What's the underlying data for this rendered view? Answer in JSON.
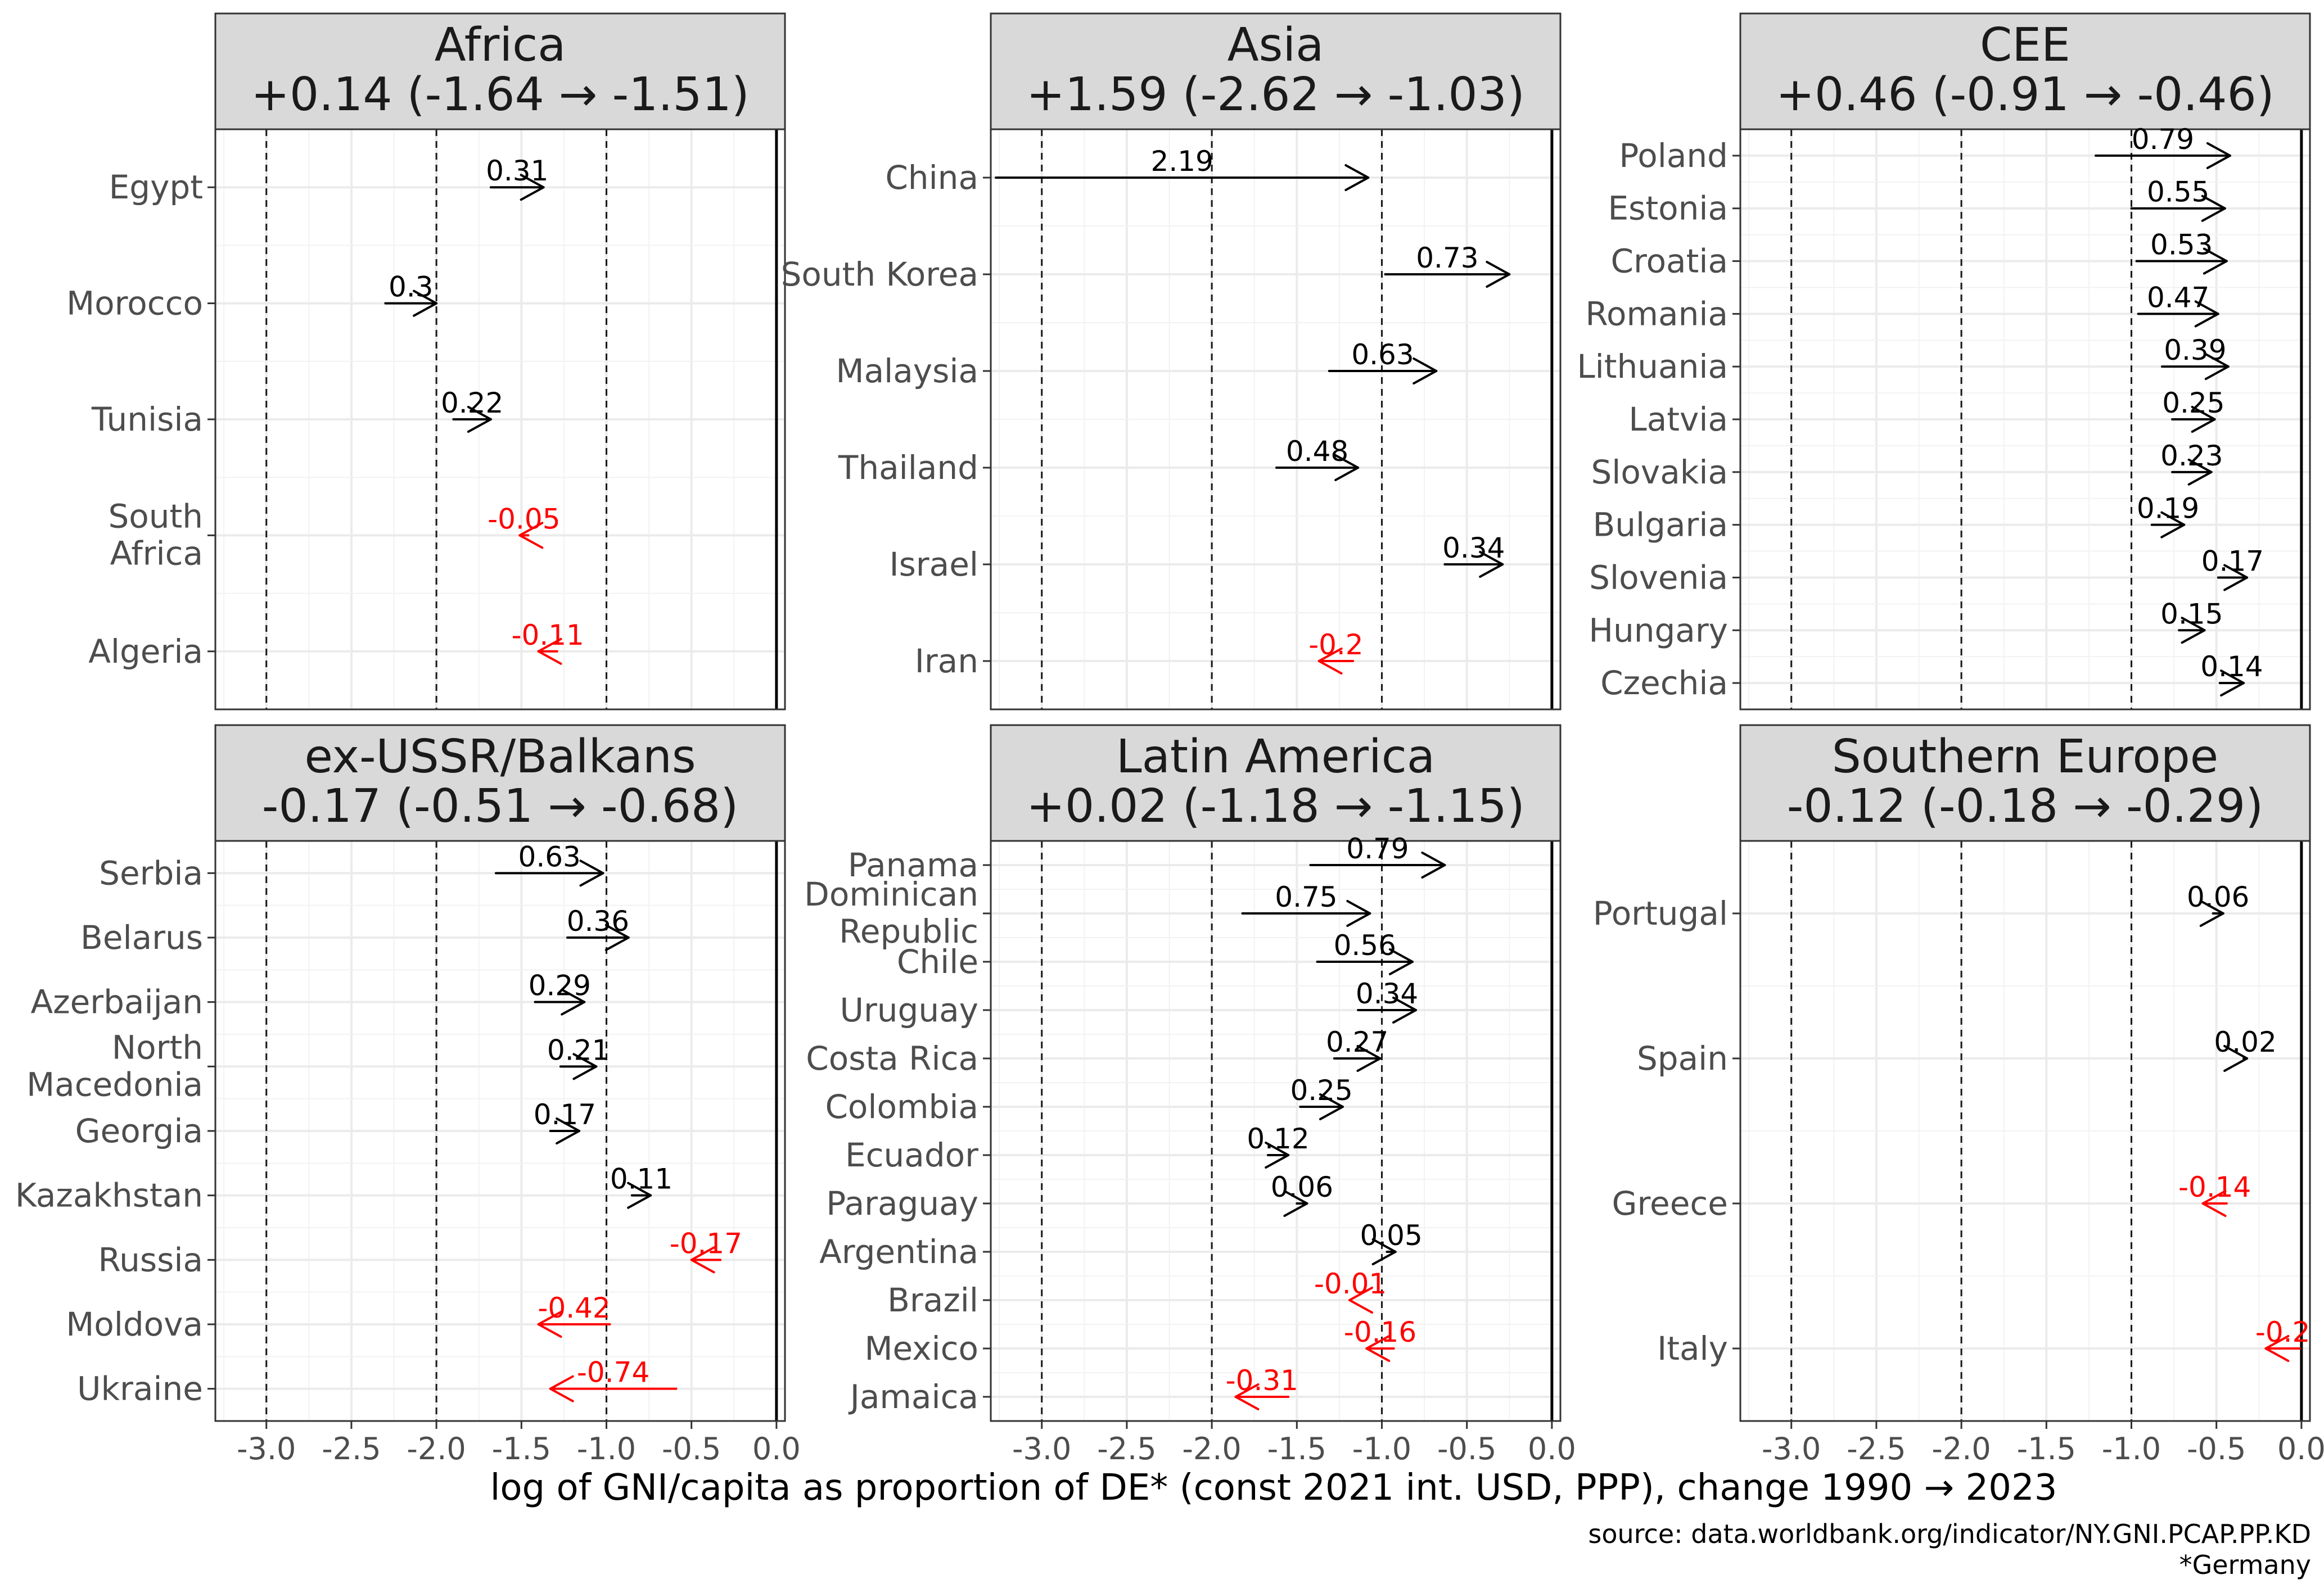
{
  "chart_data": {
    "type": "arrow-dumbbell",
    "xlabel": "log of GNI/capita as proportion of DE* (const 2021 int. USD, PPP), change 1990 → 2023",
    "caption_lines": [
      "source: data.worldbank.org/indicator/NY.GNI.PCAP.PP.KD",
      "*Germany"
    ],
    "xlim": [
      -3.3,
      0.05
    ],
    "x_ticks": [
      {
        "value": -3.0,
        "label": "-3.0"
      },
      {
        "value": -2.5,
        "label": "-2.5"
      },
      {
        "value": -2.0,
        "label": "-2.0"
      },
      {
        "value": -1.5,
        "label": "-1.5"
      },
      {
        "value": -1.0,
        "label": "-1.0"
      },
      {
        "value": -0.5,
        "label": "-0.5"
      },
      {
        "value": 0.0,
        "label": "0.0"
      }
    ],
    "reference_lines": [
      -3.0,
      -2.0,
      -1.0
    ],
    "colors": {
      "positive": "#000000",
      "negative": "#ff0000"
    },
    "panels": [
      {
        "name": "Africa",
        "title_line1": "Africa",
        "title_line2": "+0.14 (-1.64 → -1.51)",
        "countries": [
          {
            "name": "Egypt",
            "start": -1.68,
            "end": -1.37,
            "label": "0.31"
          },
          {
            "name": "Morocco",
            "start": -2.3,
            "end": -2.0,
            "label": "0.3"
          },
          {
            "name": "Tunisia",
            "start": -1.9,
            "end": -1.68,
            "label": "0.22"
          },
          {
            "name": "South Africa",
            "start": -1.46,
            "end": -1.51,
            "label": "-0.05"
          },
          {
            "name": "Algeria",
            "start": -1.29,
            "end": -1.4,
            "label": "-0.11"
          }
        ]
      },
      {
        "name": "Asia",
        "title_line1": "Asia",
        "title_line2": "+1.59 (-2.62 → -1.03)",
        "countries": [
          {
            "name": "China",
            "start": -3.27,
            "end": -1.08,
            "label": "2.19"
          },
          {
            "name": "South Korea",
            "start": -0.98,
            "end": -0.25,
            "label": "0.73"
          },
          {
            "name": "Malaysia",
            "start": -1.31,
            "end": -0.68,
            "label": "0.63"
          },
          {
            "name": "Thailand",
            "start": -1.62,
            "end": -1.14,
            "label": "0.48"
          },
          {
            "name": "Israel",
            "start": -0.63,
            "end": -0.29,
            "label": "0.34"
          },
          {
            "name": "Iran",
            "start": -1.17,
            "end": -1.37,
            "label": "-0.2"
          }
        ]
      },
      {
        "name": "CEE",
        "title_line1": "CEE",
        "title_line2": "+0.46 (-0.91 → -0.46)",
        "countries": [
          {
            "name": "Poland",
            "start": -1.21,
            "end": -0.42,
            "label": "0.79"
          },
          {
            "name": "Estonia",
            "start": -1.0,
            "end": -0.45,
            "label": "0.55"
          },
          {
            "name": "Croatia",
            "start": -0.97,
            "end": -0.44,
            "label": "0.53"
          },
          {
            "name": "Romania",
            "start": -0.96,
            "end": -0.49,
            "label": "0.47"
          },
          {
            "name": "Lithuania",
            "start": -0.82,
            "end": -0.43,
            "label": "0.39"
          },
          {
            "name": "Latvia",
            "start": -0.76,
            "end": -0.51,
            "label": "0.25"
          },
          {
            "name": "Slovakia",
            "start": -0.76,
            "end": -0.53,
            "label": "0.23"
          },
          {
            "name": "Bulgaria",
            "start": -0.88,
            "end": -0.69,
            "label": "0.19"
          },
          {
            "name": "Slovenia",
            "start": -0.49,
            "end": -0.32,
            "label": "0.17"
          },
          {
            "name": "Hungary",
            "start": -0.72,
            "end": -0.57,
            "label": "0.15"
          },
          {
            "name": "Czechia",
            "start": -0.48,
            "end": -0.34,
            "label": "0.14"
          }
        ]
      },
      {
        "name": "ex-USSR/Balkans",
        "title_line1": "ex-USSR/Balkans",
        "title_line2": "-0.17 (-0.51 → -0.68)",
        "countries": [
          {
            "name": "Serbia",
            "start": -1.65,
            "end": -1.02,
            "label": "0.63"
          },
          {
            "name": "Belarus",
            "start": -1.23,
            "end": -0.87,
            "label": "0.36"
          },
          {
            "name": "Azerbaijan",
            "start": -1.42,
            "end": -1.13,
            "label": "0.29"
          },
          {
            "name": "North Macedonia",
            "start": -1.27,
            "end": -1.06,
            "label": "0.21"
          },
          {
            "name": "Georgia",
            "start": -1.33,
            "end": -1.16,
            "label": "0.17"
          },
          {
            "name": "Kazakhstan",
            "start": -0.85,
            "end": -0.74,
            "label": "0.11"
          },
          {
            "name": "Russia",
            "start": -0.33,
            "end": -0.5,
            "label": "-0.17"
          },
          {
            "name": "Moldova",
            "start": -0.98,
            "end": -1.4,
            "label": "-0.42"
          },
          {
            "name": "Ukraine",
            "start": -0.59,
            "end": -1.33,
            "label": "-0.74"
          }
        ]
      },
      {
        "name": "Latin America",
        "title_line1": "Latin America",
        "title_line2": "+0.02 (-1.18 → -1.15)",
        "countries": [
          {
            "name": "Panama",
            "start": -1.42,
            "end": -0.63,
            "label": "0.79"
          },
          {
            "name": "Dominican Republic",
            "start": -1.82,
            "end": -1.07,
            "label": "0.75"
          },
          {
            "name": "Chile",
            "start": -1.38,
            "end": -0.82,
            "label": "0.56"
          },
          {
            "name": "Uruguay",
            "start": -1.14,
            "end": -0.8,
            "label": "0.34"
          },
          {
            "name": "Costa Rica",
            "start": -1.28,
            "end": -1.01,
            "label": "0.27"
          },
          {
            "name": "Colombia",
            "start": -1.48,
            "end": -1.23,
            "label": "0.25"
          },
          {
            "name": "Ecuador",
            "start": -1.67,
            "end": -1.55,
            "label": "0.12"
          },
          {
            "name": "Paraguay",
            "start": -1.5,
            "end": -1.44,
            "label": "0.06"
          },
          {
            "name": "Argentina",
            "start": -0.97,
            "end": -0.92,
            "label": "0.05"
          },
          {
            "name": "Brazil",
            "start": -1.18,
            "end": -1.19,
            "label": "-0.01"
          },
          {
            "name": "Mexico",
            "start": -0.93,
            "end": -1.09,
            "label": "-0.16"
          },
          {
            "name": "Jamaica",
            "start": -1.55,
            "end": -1.86,
            "label": "-0.31"
          }
        ]
      },
      {
        "name": "Southern Europe",
        "title_line1": "Southern Europe",
        "title_line2": "-0.12 (-0.18 → -0.29)",
        "countries": [
          {
            "name": "Portugal",
            "start": -0.52,
            "end": -0.46,
            "label": "0.06"
          },
          {
            "name": "Spain",
            "start": -0.34,
            "end": -0.32,
            "label": "0.02"
          },
          {
            "name": "Greece",
            "start": -0.44,
            "end": -0.58,
            "label": "-0.14"
          },
          {
            "name": "Italy",
            "start": -0.01,
            "end": -0.21,
            "label": "-0.2"
          }
        ]
      }
    ]
  }
}
